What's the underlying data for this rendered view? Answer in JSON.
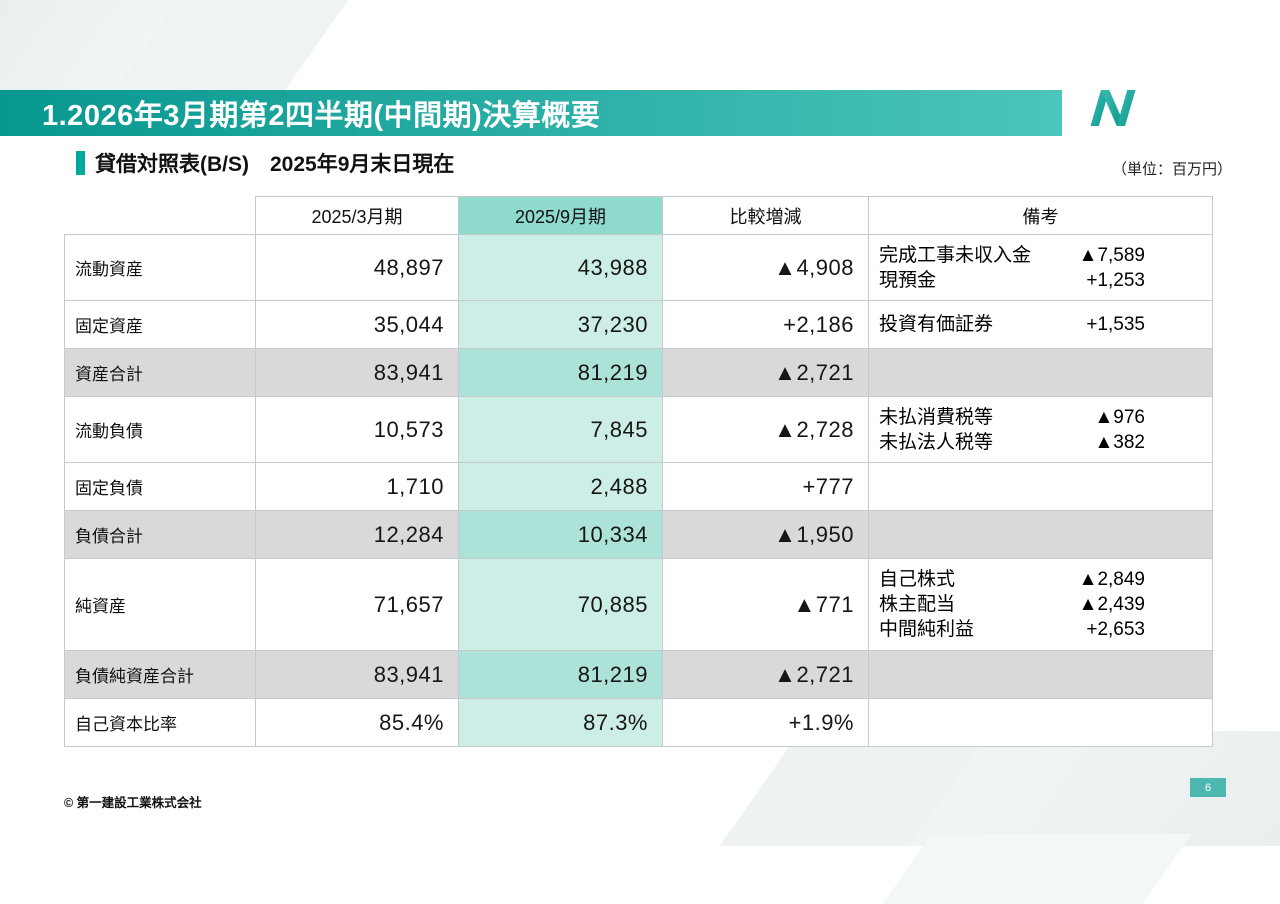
{
  "slide": {
    "title": "1.2026年3月期第2四半期(中間期)決算概要",
    "subtitle": "貸借対照表(B/S)　2025年9月末日現在",
    "unit_note": "（単位：百万円）",
    "footer": "© 第一建設工業株式会社",
    "page_number": "6",
    "accent_color": "#00a99d",
    "header_gradient": [
      "#07978f",
      "#4cc5bb"
    ]
  },
  "table": {
    "columns": [
      "",
      "2025/3月期",
      "2025/9月期",
      "比較増減",
      "備考"
    ],
    "highlight_column": "2025/9月期",
    "rows": [
      {
        "label": "流動資産",
        "prev": "48,897",
        "curr": "43,988",
        "diff": "▲4,908",
        "type": "normal",
        "notes": [
          {
            "label": "完成工事未収入金",
            "value": "▲7,589"
          },
          {
            "label": "現預金",
            "value": "+1,253"
          }
        ]
      },
      {
        "label": "固定資産",
        "prev": "35,044",
        "curr": "37,230",
        "diff": "+2,186",
        "type": "normal",
        "notes": [
          {
            "label": "投資有価証券",
            "value": "+1,535"
          }
        ]
      },
      {
        "label": "資産合計",
        "prev": "83,941",
        "curr": "81,219",
        "diff": "▲2,721",
        "type": "summary",
        "notes": []
      },
      {
        "label": "流動負債",
        "prev": "10,573",
        "curr": "7,845",
        "diff": "▲2,728",
        "type": "normal",
        "notes": [
          {
            "label": "未払消費税等",
            "value": "▲976"
          },
          {
            "label": "未払法人税等",
            "value": "▲382"
          }
        ]
      },
      {
        "label": "固定負債",
        "prev": "1,710",
        "curr": "2,488",
        "diff": "+777",
        "type": "normal",
        "notes": []
      },
      {
        "label": "負債合計",
        "prev": "12,284",
        "curr": "10,334",
        "diff": "▲1,950",
        "type": "summary",
        "notes": []
      },
      {
        "label": "純資産",
        "prev": "71,657",
        "curr": "70,885",
        "diff": "▲771",
        "type": "normal",
        "notes": [
          {
            "label": "自己株式",
            "value": "▲2,849"
          },
          {
            "label": "株主配当",
            "value": "▲2,439"
          },
          {
            "label": "中間純利益",
            "value": "+2,653"
          }
        ]
      },
      {
        "label": "負債純資産合計",
        "prev": "83,941",
        "curr": "81,219",
        "diff": "▲2,721",
        "type": "summary",
        "notes": []
      },
      {
        "label": "自己資本比率",
        "prev": "85.4%",
        "curr": "87.3%",
        "diff": "+1.9%",
        "type": "normal",
        "notes": []
      }
    ]
  }
}
